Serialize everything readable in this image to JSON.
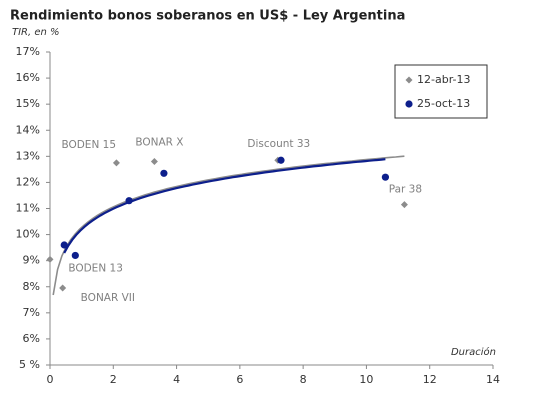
{
  "chart_data": {
    "type": "scatter",
    "title": "Rendimiento bonos soberanos en US$ - Ley Argentina",
    "subtitle": "TIR, en %",
    "x_label": "Duración",
    "xlim": [
      0,
      14
    ],
    "xticks": [
      0,
      2,
      4,
      6,
      8,
      10,
      12,
      14
    ],
    "ylim": [
      5,
      17
    ],
    "yticks": [
      {
        "value": 5,
        "label": "5 %"
      },
      {
        "value": 6,
        "label": "6%"
      },
      {
        "value": 7,
        "label": "7%"
      },
      {
        "value": 8,
        "label": "8%"
      },
      {
        "value": 9,
        "label": "9%"
      },
      {
        "value": 10,
        "label": "10%"
      },
      {
        "value": 11,
        "label": "11%"
      },
      {
        "value": 12,
        "label": "12%"
      },
      {
        "value": 13,
        "label": "13%"
      },
      {
        "value": 14,
        "label": "14%"
      },
      {
        "value": 15,
        "label": "15%"
      },
      {
        "value": 16,
        "label": "16%"
      },
      {
        "value": 17,
        "label": "17%"
      }
    ],
    "grid": false,
    "trendline": "logarithmic",
    "legend": "top-right",
    "series": [
      {
        "name": "12-abr-13",
        "color": "#8c8c8c",
        "marker": "diamond",
        "x": [
          0,
          0.4,
          2.1,
          3.3,
          7.2,
          11.2
        ],
        "values": [
          9.05,
          7.95,
          12.75,
          12.8,
          12.85,
          11.15
        ],
        "labels": [
          null,
          "BONAR VII",
          "BODEN 15",
          "BONAR X",
          "Discount 33",
          "Par 38"
        ]
      },
      {
        "name": "25-oct-13",
        "color": "#0d1f8c",
        "marker": "circle",
        "x": [
          0.45,
          0.8,
          2.5,
          3.6,
          7.3,
          10.6
        ],
        "values": [
          9.6,
          9.2,
          11.3,
          12.35,
          12.85,
          12.2
        ],
        "labels": [
          null,
          "BODEN 13",
          null,
          null,
          null,
          null
        ]
      }
    ]
  }
}
